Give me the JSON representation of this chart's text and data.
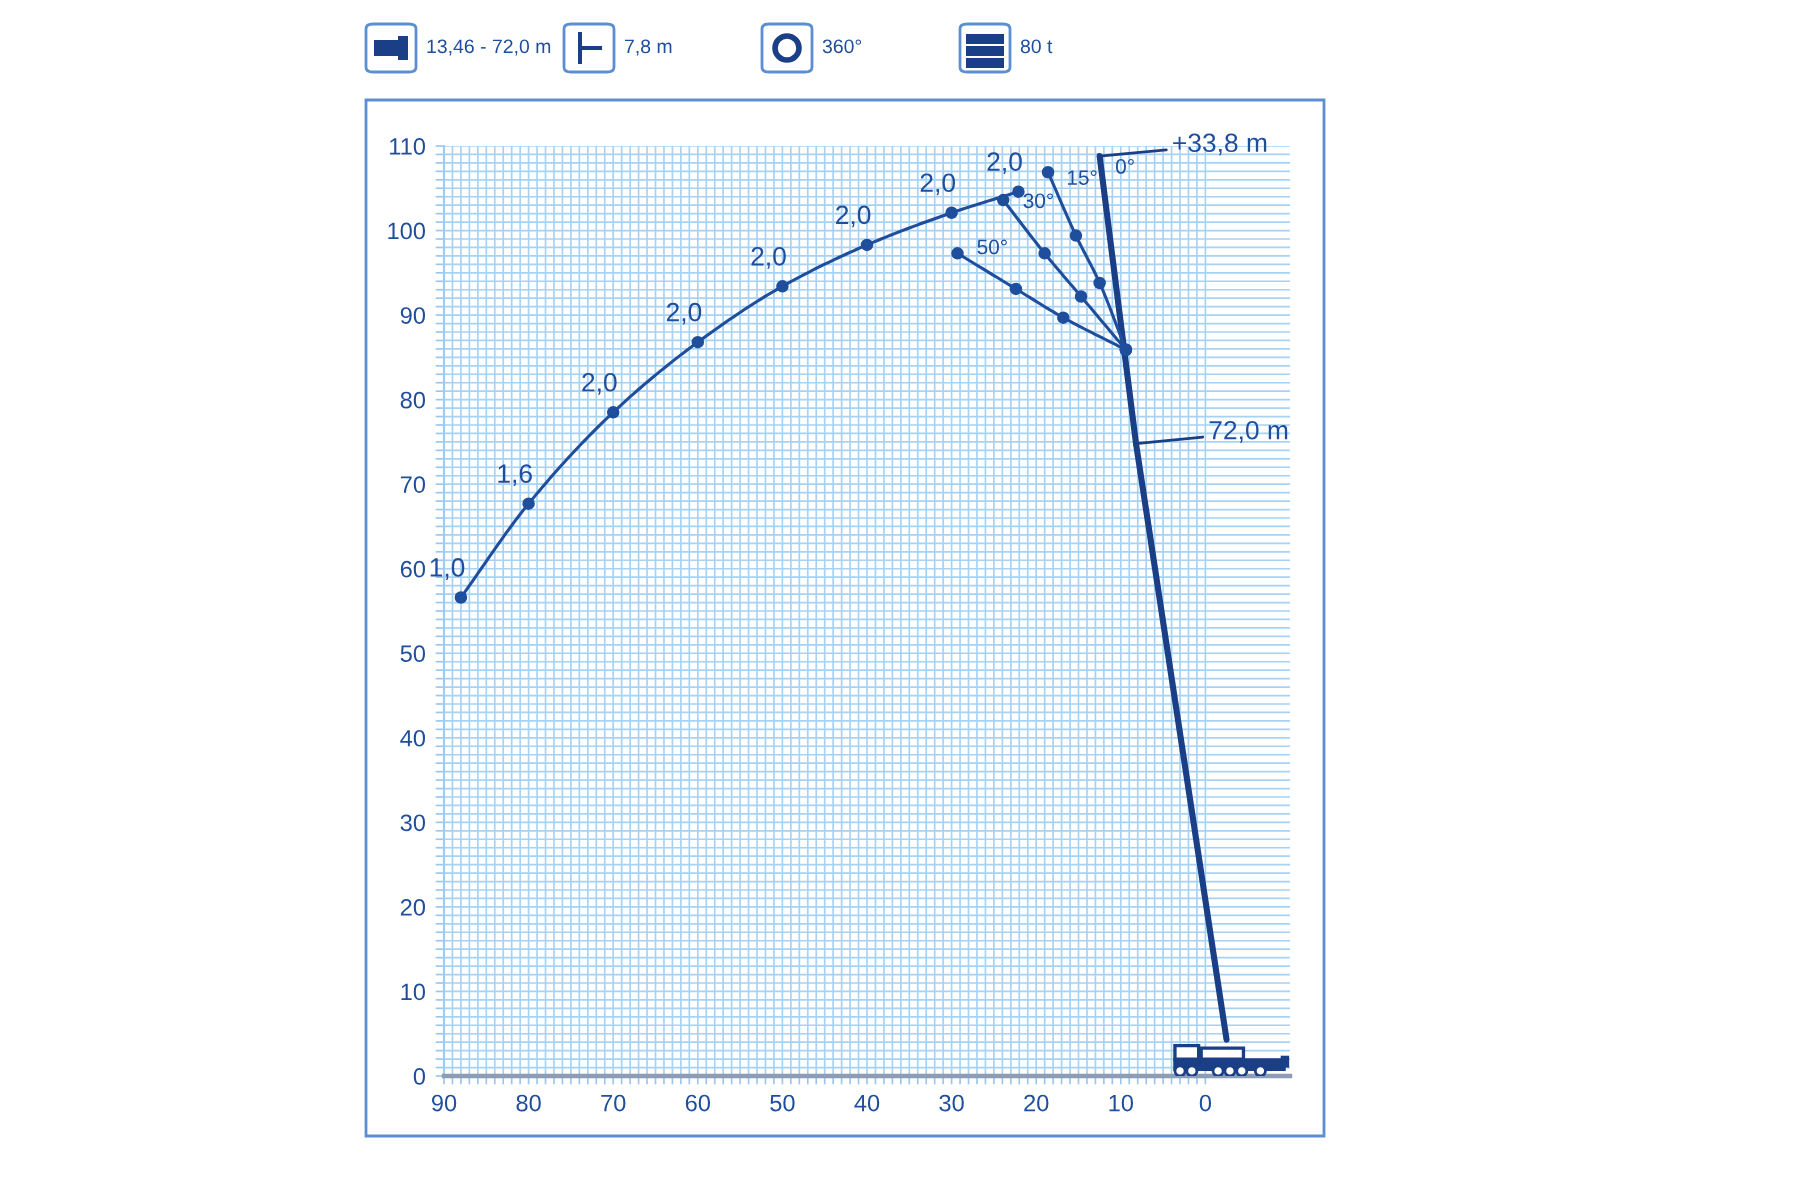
{
  "chart_data": {
    "type": "line",
    "annotations": [
      "13,46 - 72,0 m",
      "7,8 m",
      "360°",
      "80 t",
      {
        "text": "1,0",
        "x": 88,
        "y": 56.6
      },
      {
        "text": "1,6",
        "x": 80,
        "y": 67.7
      },
      {
        "text": "2,0",
        "x": 70,
        "y": 78.5
      },
      {
        "text": "2,0",
        "x": 60,
        "y": 86.8
      },
      {
        "text": "2,0",
        "x": 50,
        "y": 93.4
      },
      {
        "text": "2,0",
        "x": 40,
        "y": 98.3
      },
      {
        "text": "2,0",
        "x": 30,
        "y": 102.1
      },
      {
        "text": "2,0",
        "x": 22.1,
        "y": 104.6
      },
      {
        "text": "72,0 m",
        "x": 8.2,
        "y": 74.8
      },
      {
        "text": "+33,8 m",
        "x": 12.5,
        "y": 108.8
      }
    ],
    "series": [
      {
        "color": "#1f4e9c",
        "x": [
          88,
          80,
          70,
          60,
          50,
          40,
          30,
          22.1
        ],
        "values": [
          56.6,
          67.7,
          78.5,
          86.8,
          93.4,
          98.3,
          102.1,
          104.6
        ]
      },
      {
        "color": "#1a3f86",
        "marker": "none",
        "x": [
          -2.5,
          8.2
        ],
        "values": [
          4.3,
          74.8
        ]
      },
      {
        "name": "0°",
        "color": "#1a3f86",
        "marker": "none",
        "x": [
          8.2,
          12.5
        ],
        "values": [
          74.8,
          108.8
        ]
      },
      {
        "name": "15°",
        "color": "#1f4e9c",
        "x": [
          9.4,
          12.5,
          15.3,
          18.6
        ],
        "values": [
          85.9,
          93.8,
          99.4,
          106.9
        ]
      },
      {
        "name": "30°",
        "color": "#1f4e9c",
        "x": [
          9.4,
          14.7,
          19.0,
          23.9
        ],
        "values": [
          85.9,
          92.2,
          97.3,
          103.6
        ]
      },
      {
        "name": "50°",
        "color": "#1f4e9c",
        "x": [
          9.4,
          16.8,
          22.4,
          29.3
        ],
        "values": [
          85.9,
          89.7,
          93.1,
          97.3
        ]
      }
    ],
    "xlim": [
      90,
      -10
    ],
    "ylim": [
      0,
      110
    ],
    "xticks": [
      90,
      {
        "value": 89,
        "label": null
      },
      {
        "value": 88,
        "label": null
      },
      {
        "value": 87,
        "label": null
      },
      {
        "value": 86,
        "label": null
      },
      {
        "value": 85,
        "label": null
      },
      {
        "value": 84,
        "label": null
      },
      {
        "value": 83,
        "label": null
      },
      {
        "value": 82,
        "label": null
      },
      {
        "value": 81,
        "label": null
      },
      80,
      {
        "value": 79,
        "label": null
      },
      {
        "value": 78,
        "label": null
      },
      {
        "value": 77,
        "label": null
      },
      {
        "value": 76,
        "label": null
      },
      {
        "value": 75,
        "label": null
      },
      {
        "value": 74,
        "label": null
      },
      {
        "value": 73,
        "label": null
      },
      {
        "value": 72,
        "label": null
      },
      {
        "value": 71,
        "label": null
      },
      70,
      {
        "value": 69,
        "label": null
      },
      {
        "value": 68,
        "label": null
      },
      {
        "value": 67,
        "label": null
      },
      {
        "value": 66,
        "label": null
      },
      {
        "value": 65,
        "label": null
      },
      {
        "value": 64,
        "label": null
      },
      {
        "value": 63,
        "label": null
      },
      {
        "value": 62,
        "label": null
      },
      {
        "value": 61,
        "label": null
      },
      60,
      {
        "value": 59,
        "label": null
      },
      {
        "value": 58,
        "label": null
      },
      {
        "value": 57,
        "label": null
      },
      {
        "value": 56,
        "label": null
      },
      {
        "value": 55,
        "label": null
      },
      {
        "value": 54,
        "label": null
      },
      {
        "value": 53,
        "label": null
      },
      {
        "value": 52,
        "label": null
      },
      {
        "value": 51,
        "label": null
      },
      50,
      {
        "value": 49,
        "label": null
      },
      {
        "value": 48,
        "label": null
      },
      {
        "value": 47,
        "label": null
      },
      {
        "value": 46,
        "label": null
      },
      {
        "value": 45,
        "label": null
      },
      {
        "value": 44,
        "label": null
      },
      {
        "value": 43,
        "label": null
      },
      {
        "value": 42,
        "label": null
      },
      {
        "value": 41,
        "label": null
      },
      40,
      {
        "value": 39,
        "label": null
      },
      {
        "value": 38,
        "label": null
      },
      {
        "value": 37,
        "label": null
      },
      {
        "value": 36,
        "label": null
      },
      {
        "value": 35,
        "label": null
      },
      {
        "value": 34,
        "label": null
      },
      {
        "value": 33,
        "label": null
      },
      {
        "value": 32,
        "label": null
      },
      {
        "value": 31,
        "label": null
      },
      30,
      {
        "value": 29,
        "label": null
      },
      {
        "value": 28,
        "label": null
      },
      {
        "value": 27,
        "label": null
      },
      {
        "value": 26,
        "label": null
      },
      {
        "value": 25,
        "label": null
      },
      {
        "value": 24,
        "label": null
      },
      {
        "value": 23,
        "label": null
      },
      {
        "value": 22,
        "label": null
      },
      {
        "value": 21,
        "label": null
      },
      20,
      {
        "value": 19,
        "label": null
      },
      {
        "value": 18,
        "label": null
      },
      {
        "value": 17,
        "label": null
      },
      {
        "value": 16,
        "label": null
      },
      {
        "value": 15,
        "label": null
      },
      {
        "value": 14,
        "label": null
      },
      {
        "value": 13,
        "label": null
      },
      {
        "value": 12,
        "label": null
      },
      {
        "value": 11,
        "label": null
      },
      10,
      {
        "value": 9,
        "label": null
      },
      {
        "value": 8,
        "label": null
      },
      {
        "value": 7,
        "label": null
      },
      {
        "value": 6,
        "label": null
      },
      {
        "value": 5,
        "label": null
      },
      {
        "value": 4,
        "label": null
      },
      {
        "value": 3,
        "label": null
      },
      {
        "value": 2,
        "label": null
      },
      {
        "value": 1,
        "label": null
      },
      0
    ],
    "yticks": [
      0,
      {
        "value": 1,
        "label": null
      },
      {
        "value": 2,
        "label": null
      },
      {
        "value": 3,
        "label": null
      },
      {
        "value": 4,
        "label": null
      },
      {
        "value": 5,
        "label": null
      },
      {
        "value": 6,
        "label": null
      },
      {
        "value": 7,
        "label": null
      },
      {
        "value": 8,
        "label": null
      },
      {
        "value": 9,
        "label": null
      },
      10,
      {
        "value": 11,
        "label": null
      },
      {
        "value": 12,
        "label": null
      },
      {
        "value": 13,
        "label": null
      },
      {
        "value": 14,
        "label": null
      },
      {
        "value": 15,
        "label": null
      },
      {
        "value": 16,
        "label": null
      },
      {
        "value": 17,
        "label": null
      },
      {
        "value": 18,
        "label": null
      },
      {
        "value": 19,
        "label": null
      },
      20,
      {
        "value": 21,
        "label": null
      },
      {
        "value": 22,
        "label": null
      },
      {
        "value": 23,
        "label": null
      },
      {
        "value": 24,
        "label": null
      },
      {
        "value": 25,
        "label": null
      },
      {
        "value": 26,
        "label": null
      },
      {
        "value": 27,
        "label": null
      },
      {
        "value": 28,
        "label": null
      },
      {
        "value": 29,
        "label": null
      },
      30,
      {
        "value": 31,
        "label": null
      },
      {
        "value": 32,
        "label": null
      },
      {
        "value": 33,
        "label": null
      },
      {
        "value": 34,
        "label": null
      },
      {
        "value": 35,
        "label": null
      },
      {
        "value": 36,
        "label": null
      },
      {
        "value": 37,
        "label": null
      },
      {
        "value": 38,
        "label": null
      },
      {
        "value": 39,
        "label": null
      },
      40,
      {
        "value": 41,
        "label": null
      },
      {
        "value": 42,
        "label": null
      },
      {
        "value": 43,
        "label": null
      },
      {
        "value": 44,
        "label": null
      },
      {
        "value": 45,
        "label": null
      },
      {
        "value": 46,
        "label": null
      },
      {
        "value": 47,
        "label": null
      },
      {
        "value": 48,
        "label": null
      },
      {
        "value": 49,
        "label": null
      },
      50,
      {
        "value": 51,
        "label": null
      },
      {
        "value": 52,
        "label": null
      },
      {
        "value": 53,
        "label": null
      },
      {
        "value": 54,
        "label": null
      },
      {
        "value": 55,
        "label": null
      },
      {
        "value": 56,
        "label": null
      },
      {
        "value": 57,
        "label": null
      },
      {
        "value": 58,
        "label": null
      },
      {
        "value": 59,
        "label": null
      },
      60,
      {
        "value": 61,
        "label": null
      },
      {
        "value": 62,
        "label": null
      },
      {
        "value": 63,
        "label": null
      },
      {
        "value": 64,
        "label": null
      },
      {
        "value": 65,
        "label": null
      },
      {
        "value": 66,
        "label": null
      },
      {
        "value": 67,
        "label": null
      },
      {
        "value": 68,
        "label": null
      },
      {
        "value": 69,
        "label": null
      },
      70,
      {
        "value": 71,
        "label": null
      },
      {
        "value": 72,
        "label": null
      },
      {
        "value": 73,
        "label": null
      },
      {
        "value": 74,
        "label": null
      },
      {
        "value": 75,
        "label": null
      },
      {
        "value": 76,
        "label": null
      },
      {
        "value": 77,
        "label": null
      },
      {
        "value": 78,
        "label": null
      },
      {
        "value": 79,
        "label": null
      },
      80,
      {
        "value": 81,
        "label": null
      },
      {
        "value": 82,
        "label": null
      },
      {
        "value": 83,
        "label": null
      },
      {
        "value": 84,
        "label": null
      },
      {
        "value": 85,
        "label": null
      },
      {
        "value": 86,
        "label": null
      },
      {
        "value": 87,
        "label": null
      },
      {
        "value": 88,
        "label": null
      },
      {
        "value": 89,
        "label": null
      },
      90,
      {
        "value": 91,
        "label": null
      },
      {
        "value": 92,
        "label": null
      },
      {
        "value": 93,
        "label": null
      },
      {
        "value": 94,
        "label": null
      },
      {
        "value": 95,
        "label": null
      },
      {
        "value": 96,
        "label": null
      },
      {
        "value": 97,
        "label": null
      },
      {
        "value": 98,
        "label": null
      },
      {
        "value": 99,
        "label": null
      },
      100,
      {
        "value": 101,
        "label": null
      },
      {
        "value": 102,
        "label": null
      },
      {
        "value": 103,
        "label": null
      },
      {
        "value": 104,
        "label": null
      },
      {
        "value": 105,
        "label": null
      },
      {
        "value": 106,
        "label": null
      },
      {
        "value": 107,
        "label": null
      },
      {
        "value": 108,
        "label": null
      },
      {
        "value": 109,
        "label": null
      },
      110
    ],
    "grid": true,
    "marker": "circle",
    "line_style": "solid"
  }
}
